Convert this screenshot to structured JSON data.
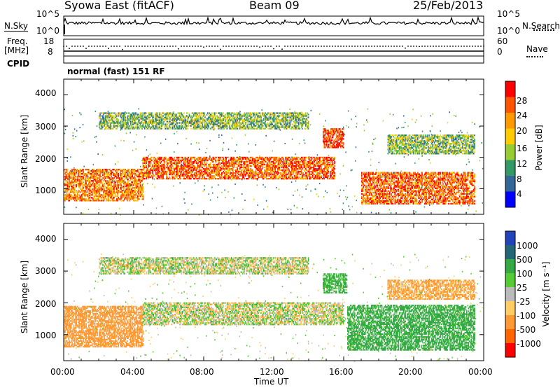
{
  "header": {
    "station": "Syowa East (fitACF)",
    "beam": "Beam 09",
    "date": "25/Feb/2013"
  },
  "summary": {
    "nsky_label": "N.Sky",
    "nsky_ticks": [
      "10^5",
      "10^0"
    ],
    "nsearch_label": "N.Search",
    "nsearch_ticks": [
      "10^5",
      "10^0"
    ],
    "freq_label": "Freq.",
    "freq_unit": "[MHz]",
    "freq_ticks": [
      "18",
      "8"
    ],
    "nave_label": "Nave",
    "nave_ticks": [
      "60",
      "0"
    ],
    "cpid_label": "CPID",
    "cpid_value": "normal (fast) 151 RF"
  },
  "power_panel": {
    "ylabel": "Slant Range [km]",
    "yticks": [
      "4000",
      "3000",
      "2000",
      "1000"
    ],
    "colorbar_label": "Power [dB]",
    "colorbar_ticks": [
      "28",
      "24",
      "20",
      "16",
      "12",
      "8",
      "4"
    ],
    "colorbar_colors": [
      "#ff0000",
      "#ff5500",
      "#ff9900",
      "#ffcc00",
      "#99cc33",
      "#339966",
      "#336699",
      "#0000ff"
    ]
  },
  "velocity_panel": {
    "ylabel": "Slant Range [km]",
    "yticks": [
      "4000",
      "3000",
      "2000",
      "1000"
    ],
    "colorbar_label": "Velocity [m s⁻¹]",
    "colorbar_ticks": [
      "1000",
      "500",
      "100",
      "25",
      "-25",
      "-100",
      "-500",
      "-1000"
    ],
    "colorbar_colors": [
      "#2244bb",
      "#226677",
      "#33aa44",
      "#55cc33",
      "#bbbbbb",
      "#ffcc66",
      "#ff9933",
      "#ff6600",
      "#ff0000"
    ]
  },
  "xaxis": {
    "label": "Time UT",
    "ticks": [
      "00:00",
      "04:00",
      "08:00",
      "12:00",
      "16:00",
      "20:00",
      "00:00"
    ]
  },
  "chart_data": [
    {
      "type": "heatmap",
      "title": "Power",
      "xlabel": "Time UT",
      "ylabel": "Slant Range [km]",
      "xlim": [
        "00:00",
        "24:00"
      ],
      "ylim": [
        180,
        4500
      ],
      "zlabel": "Power [dB]",
      "zlim": [
        0,
        30
      ],
      "bands": [
        {
          "start_h": 0.0,
          "end_h": 4.5,
          "range_lo": 600,
          "range_hi": 1600,
          "power_db": 22
        },
        {
          "start_h": 4.5,
          "end_h": 15.5,
          "range_lo": 1300,
          "range_hi": 2000,
          "power_db": 24
        },
        {
          "start_h": 2.0,
          "end_h": 14.0,
          "range_lo": 2900,
          "range_hi": 3400,
          "power_db": 12
        },
        {
          "start_h": 14.8,
          "end_h": 16.0,
          "range_lo": 2300,
          "range_hi": 2900,
          "power_db": 26
        },
        {
          "start_h": 17.0,
          "end_h": 23.5,
          "range_lo": 500,
          "range_hi": 1500,
          "power_db": 24
        },
        {
          "start_h": 18.5,
          "end_h": 23.5,
          "range_lo": 2100,
          "range_hi": 2700,
          "power_db": 12
        }
      ]
    },
    {
      "type": "heatmap",
      "title": "Velocity",
      "xlabel": "Time UT",
      "ylabel": "Slant Range [km]",
      "xlim": [
        "00:00",
        "24:00"
      ],
      "ylim": [
        180,
        4500
      ],
      "zlabel": "Velocity [m s-1]",
      "zlim": [
        -1000,
        1000
      ],
      "bands": [
        {
          "start_h": 0.0,
          "end_h": 4.5,
          "range_lo": 600,
          "range_hi": 1900,
          "velocity": -300
        },
        {
          "start_h": 4.5,
          "end_h": 16.0,
          "range_lo": 1300,
          "range_hi": 2000,
          "velocity": 0
        },
        {
          "start_h": 2.0,
          "end_h": 14.0,
          "range_lo": 2900,
          "range_hi": 3400,
          "velocity": 0
        },
        {
          "start_h": 14.8,
          "end_h": 16.2,
          "range_lo": 2300,
          "range_hi": 2900,
          "velocity": 150
        },
        {
          "start_h": 16.2,
          "end_h": 23.5,
          "range_lo": 500,
          "range_hi": 1900,
          "velocity": 200
        },
        {
          "start_h": 18.5,
          "end_h": 23.5,
          "range_lo": 2100,
          "range_hi": 2700,
          "velocity": -150
        }
      ]
    }
  ]
}
